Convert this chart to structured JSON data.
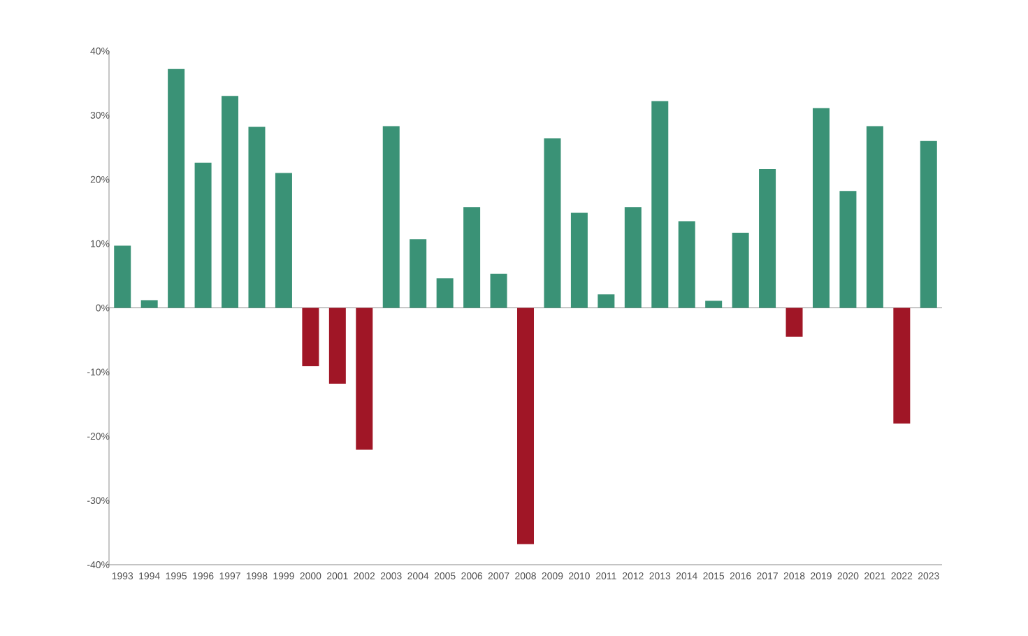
{
  "chart_data": {
    "type": "bar",
    "categories": [
      "1993",
      "1994",
      "1995",
      "1996",
      "1997",
      "1998",
      "1999",
      "2000",
      "2001",
      "2002",
      "2003",
      "2004",
      "2005",
      "2006",
      "2007",
      "2008",
      "2009",
      "2010",
      "2011",
      "2012",
      "2013",
      "2014",
      "2015",
      "2016",
      "2017",
      "2018",
      "2019",
      "2020",
      "2021",
      "2022",
      "2023"
    ],
    "values": [
      9.7,
      1.2,
      37.2,
      22.6,
      33.0,
      28.2,
      21.0,
      -9.1,
      -11.8,
      -22.1,
      28.3,
      10.7,
      4.6,
      15.7,
      5.3,
      -36.8,
      26.4,
      14.8,
      2.1,
      15.7,
      32.2,
      13.5,
      1.1,
      11.7,
      21.6,
      -4.5,
      31.1,
      18.2,
      28.3,
      -18.0,
      26.0
    ],
    "colors": [
      "#3a9276",
      "#3a9276",
      "#3a9276",
      "#3a9276",
      "#3a9276",
      "#3a9276",
      "#3a9276",
      "#a01626",
      "#a01626",
      "#a01626",
      "#3a9276",
      "#3a9276",
      "#3a9276",
      "#3a9276",
      "#3a9276",
      "#a01626",
      "#3a9276",
      "#3a9276",
      "#3a9276",
      "#3a9276",
      "#3a9276",
      "#3a9276",
      "#3a9276",
      "#3a9276",
      "#3a9276",
      "#a01626",
      "#3a9276",
      "#3a9276",
      "#3a9276",
      "#a01626",
      "#3a9276"
    ],
    "ylim": [
      -40,
      40
    ],
    "yticks": [
      {
        "value": -40,
        "label": "-40%"
      },
      {
        "value": -30,
        "label": "-30%"
      },
      {
        "value": -20,
        "label": "-20%"
      },
      {
        "value": -10,
        "label": "-10%"
      },
      {
        "value": 0,
        "label": "0%"
      },
      {
        "value": 10,
        "label": "10%"
      },
      {
        "value": 20,
        "label": "20%"
      },
      {
        "value": 30,
        "label": "30%"
      },
      {
        "value": 40,
        "label": "40%"
      }
    ]
  }
}
